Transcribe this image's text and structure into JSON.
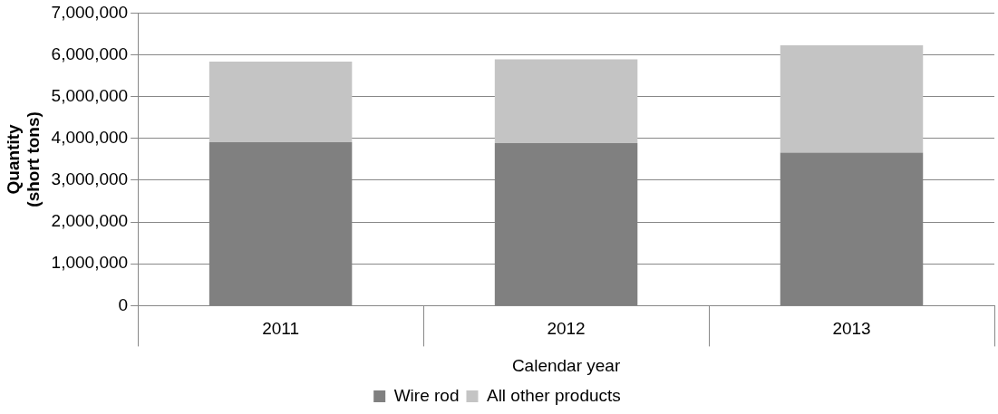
{
  "chart_data": {
    "type": "bar",
    "stacked": true,
    "xlabel": "Calendar year",
    "ylabel": "Quantity\n(short tons)",
    "categories": [
      "2011",
      "2012",
      "2013"
    ],
    "series": [
      {
        "name": "Wire rod",
        "color": "#808080",
        "values": [
          3910000,
          3890000,
          3660000
        ]
      },
      {
        "name": "All other products",
        "color": "#c4c4c4",
        "values": [
          1930000,
          2000000,
          2570000
        ]
      }
    ],
    "ylim": [
      0,
      7000000
    ],
    "yticks": [
      0,
      {
        "value": 1000000,
        "label": "1,000,000"
      },
      {
        "value": 2000000,
        "label": "2,000,000"
      },
      {
        "value": 3000000,
        "label": "3,000,000"
      },
      {
        "value": 4000000,
        "label": "4,000,000"
      },
      {
        "value": 5000000,
        "label": "5,000,000"
      },
      {
        "value": 6000000,
        "label": "6,000,000"
      },
      {
        "value": 7000000,
        "label": "7,000,000"
      }
    ],
    "grid": "y",
    "legend": "bottom"
  }
}
